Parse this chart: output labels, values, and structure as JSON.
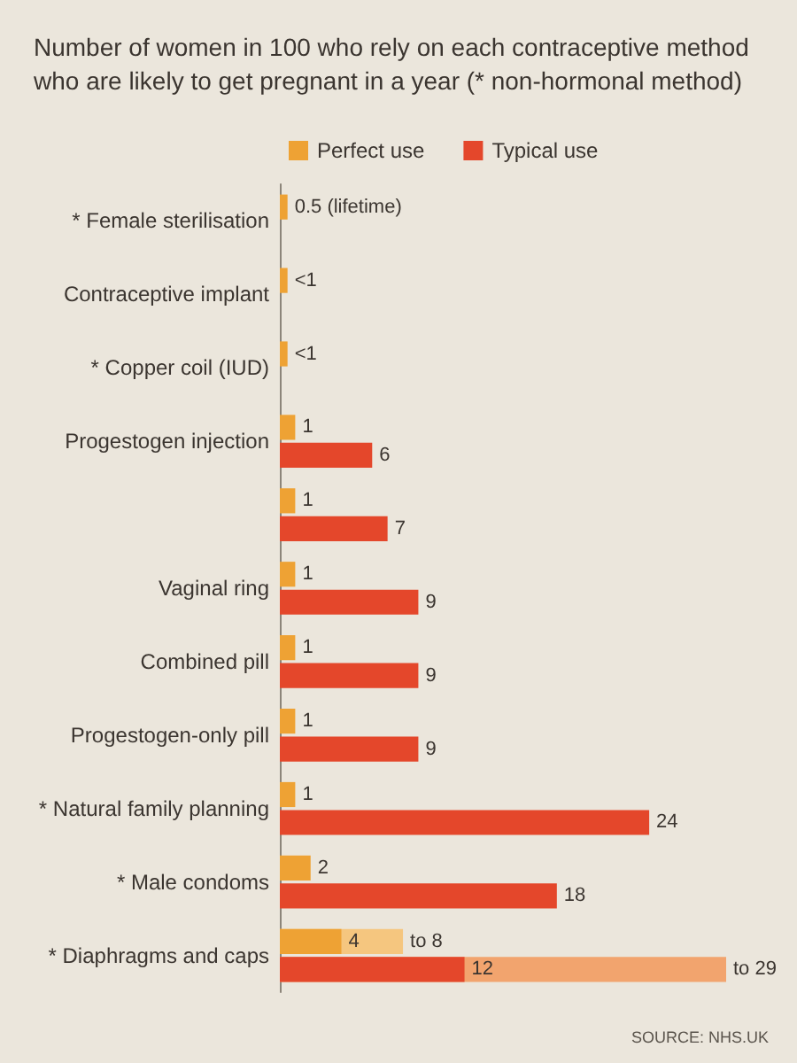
{
  "chart_data": {
    "type": "bar",
    "orientation": "horizontal",
    "title": "Number of women in 100 who rely on each contraceptive method who are likely to get pregnant in a year (* non-hormonal method)",
    "categories": [
      "* Female sterilisation",
      "Contraceptive implant",
      "* Copper coil (IUD)",
      "Progestogen injection",
      null,
      "Vaginal ring",
      "Combined pill",
      "Progestogen-only pill",
      "* Natural family planning",
      "* Male condoms",
      "* Diaphragms and caps"
    ],
    "series": [
      {
        "color": "#f5c67f",
        "values": [
          null,
          null,
          null,
          null,
          null,
          null,
          null,
          null,
          null,
          null,
          8
        ],
        "value_labels": [
          null,
          null,
          null,
          null,
          null,
          null,
          null,
          null,
          null,
          null,
          "to 8"
        ]
      },
      {
        "name": "Perfect use",
        "color": "#eea234",
        "values": [
          0.5,
          0.5,
          0.5,
          1,
          1,
          1,
          1,
          1,
          1,
          2,
          4
        ],
        "value_labels": [
          "0.5 (lifetime)",
          "<1",
          "<1",
          "1",
          "1",
          "1",
          "1",
          "1",
          "1",
          "2",
          "4"
        ]
      },
      {
        "color": "#f2a46e",
        "values": [
          null,
          null,
          null,
          null,
          null,
          null,
          null,
          null,
          null,
          null,
          29
        ],
        "value_labels": [
          null,
          null,
          null,
          null,
          null,
          null,
          null,
          null,
          null,
          null,
          "to 29"
        ]
      },
      {
        "name": "Typical use",
        "color": "#e4472b",
        "values": [
          null,
          null,
          null,
          6,
          7,
          9,
          9,
          9,
          24,
          18,
          12
        ],
        "value_labels": [
          null,
          null,
          null,
          "6",
          "7",
          "9",
          "9",
          "9",
          "24",
          "18",
          "12"
        ]
      }
    ],
    "legend": "top left",
    "annotations": [
      "SOURCE: NHS.UK"
    ]
  }
}
